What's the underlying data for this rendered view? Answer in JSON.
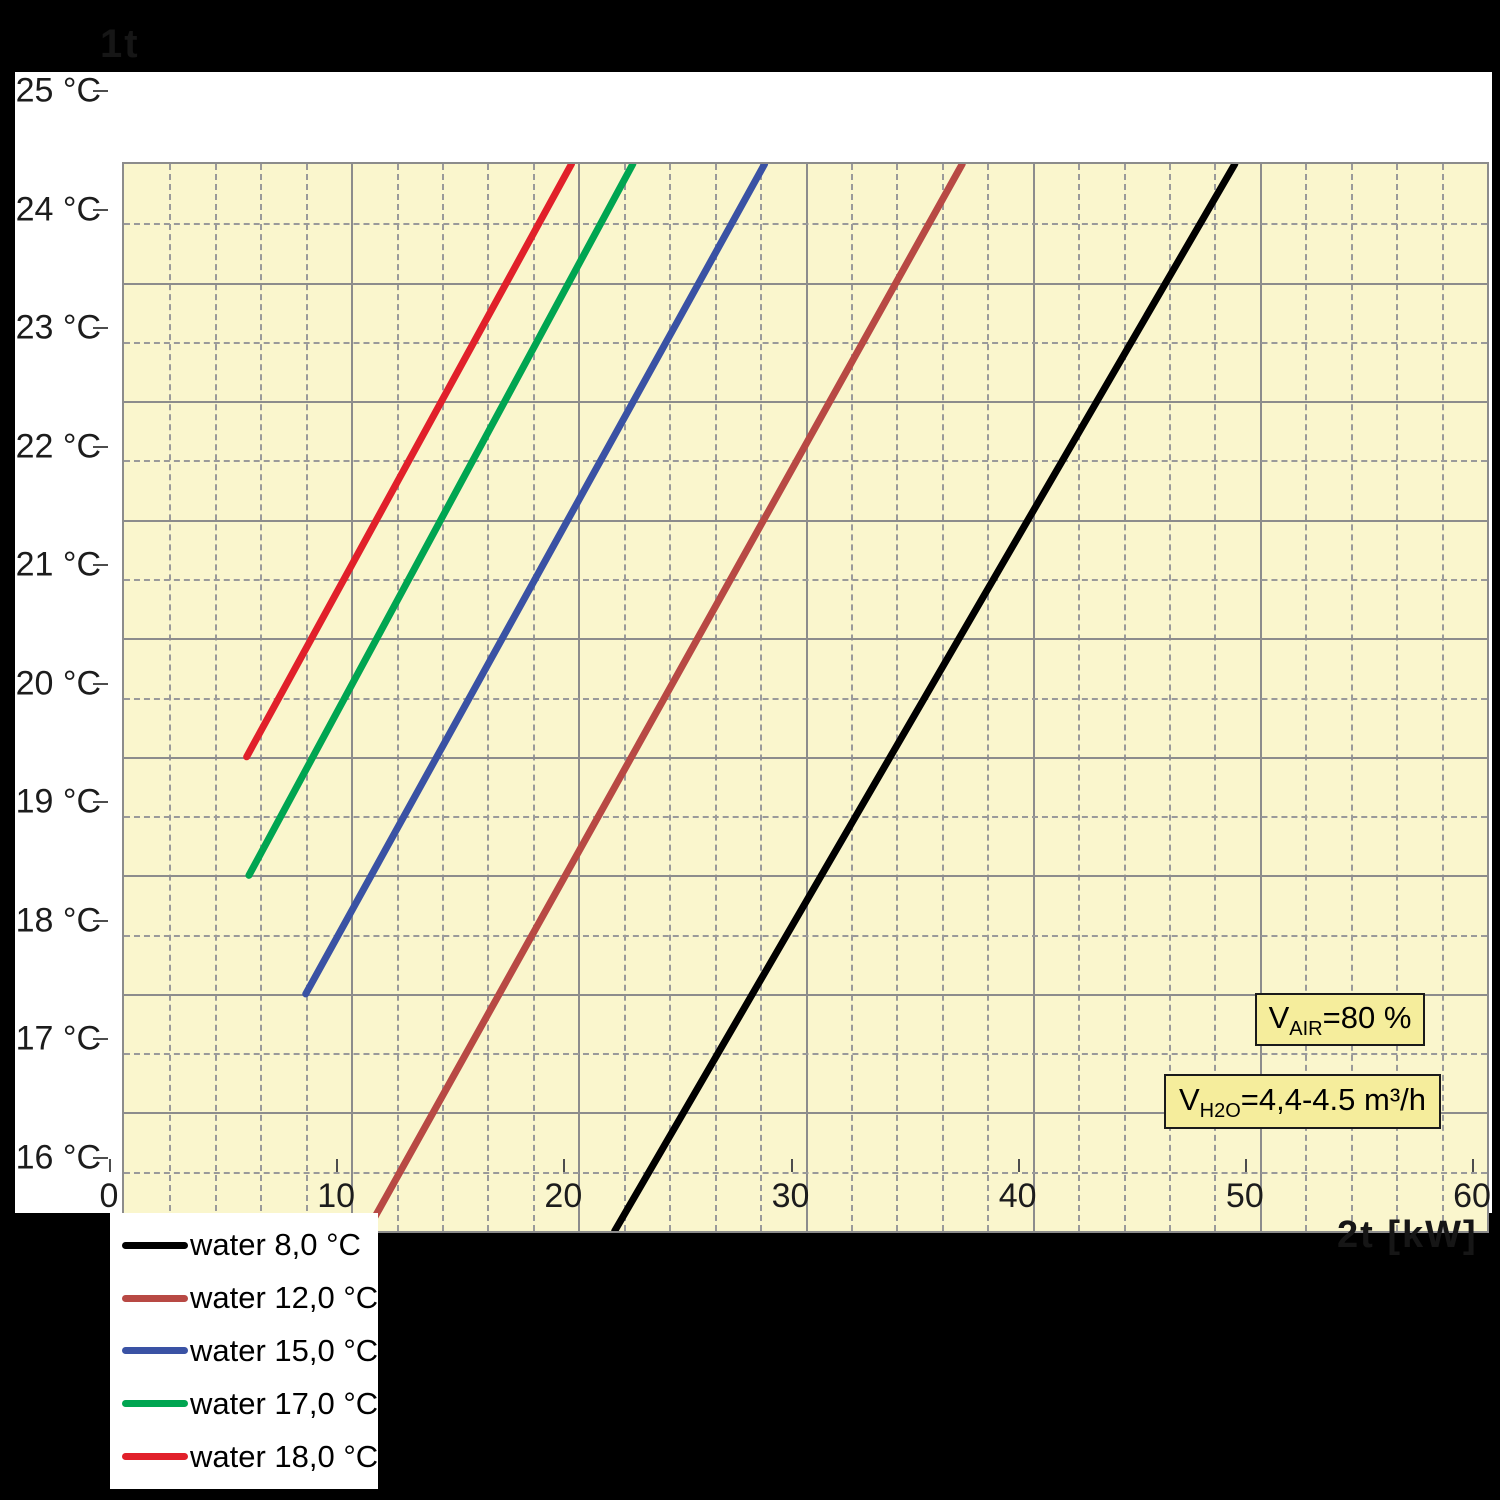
{
  "page": {
    "background": "#000000",
    "panel_background": "#ffffff"
  },
  "axis_titles": {
    "top_left_faint": "1t",
    "bottom_right_faint": "2t [kW]"
  },
  "chart_data": {
    "type": "line",
    "title": "",
    "xlabel": "2t [kW]",
    "ylabel": "1t",
    "x_unit": "kW",
    "y_unit": "°C",
    "xlim": [
      0,
      60
    ],
    "ylim": [
      16,
      25
    ],
    "x_major_step": 10,
    "x_minor_step": 2,
    "y_major_step": 1,
    "y_minor_step": 0.5,
    "grid": true,
    "x_ticks": [
      "0",
      "10",
      "20",
      "30",
      "40",
      "50",
      "60"
    ],
    "y_ticks": [
      "25 °C",
      "24 °C",
      "23 °C",
      "22 °C",
      "21 °C",
      "20 °C",
      "19 °C",
      "18 °C",
      "17 °C",
      "16 °C"
    ],
    "legend_position": "bottom-left",
    "series": [
      {
        "name": "water 8,0 °C",
        "color": "#000000",
        "points": [
          [
            21.6,
            16
          ],
          [
            48.9,
            25
          ]
        ]
      },
      {
        "name": "water 12,0 °C",
        "color": "#b84944",
        "points": [
          [
            10.7,
            16
          ],
          [
            36.9,
            25
          ]
        ]
      },
      {
        "name": "water 15,0 °C",
        "color": "#3a52a4",
        "points": [
          [
            8.0,
            18
          ],
          [
            28.2,
            25
          ]
        ]
      },
      {
        "name": "water 17,0 °C",
        "color": "#00a551",
        "points": [
          [
            5.5,
            19
          ],
          [
            22.4,
            25
          ]
        ]
      },
      {
        "name": "water 18,0 °C",
        "color": "#e1202a",
        "points": [
          [
            5.4,
            20
          ],
          [
            19.7,
            25
          ]
        ]
      }
    ],
    "annotations": [
      {
        "prefix": "V",
        "sub": "AIR",
        "rest": "=80 %"
      },
      {
        "prefix": "V",
        "sub": "H2O",
        "rest": "=4,4-4.5 m³/h"
      }
    ]
  },
  "colors": {
    "plot_bg": "#faf6cd",
    "grid_major": "#8c8c8c",
    "grid_minor": "#9a9a9a",
    "annotation_bg": "#f5ed9c",
    "tick_text": "#1c1c1c"
  }
}
